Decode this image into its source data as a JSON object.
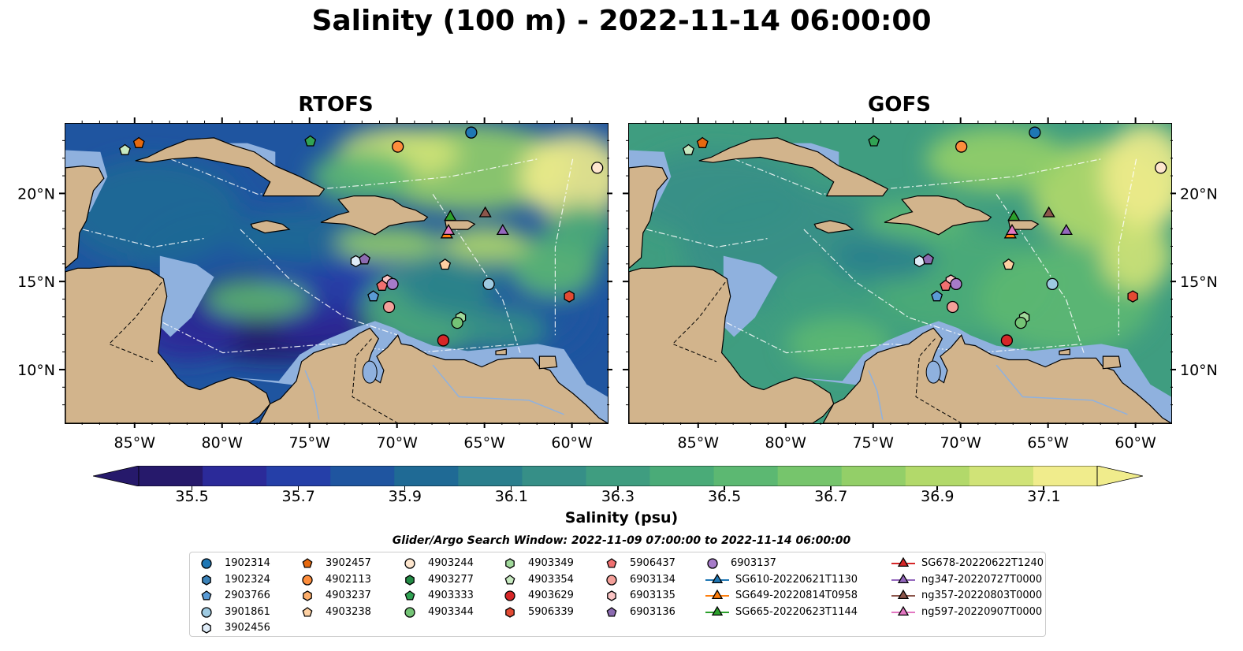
{
  "title": "Salinity (100 m) - 2022-11-14 06:00:00",
  "panels": [
    {
      "title": "RTOFS",
      "field": "rtofs"
    },
    {
      "title": "GOFS",
      "field": "gofs"
    }
  ],
  "axes": {
    "lon_ticks": [
      "85°W",
      "80°W",
      "75°W",
      "70°W",
      "65°W",
      "60°W"
    ],
    "lat_ticks": [
      "20°N",
      "15°N",
      "10°N"
    ],
    "lon_range": [
      -89,
      -58
    ],
    "lat_range": [
      7,
      24
    ]
  },
  "colorbar": {
    "label": "Salinity (psu)",
    "min": 35.4,
    "max": 37.2,
    "ticks": [
      "35.5",
      "35.7",
      "35.9",
      "36.1",
      "36.3",
      "36.5",
      "36.7",
      "36.9",
      "37.1"
    ],
    "extend": "both",
    "colors": [
      "#26196b",
      "#2b2a99",
      "#253fa8",
      "#1f55a0",
      "#1f6a95",
      "#2a7f8d",
      "#368f87",
      "#3f9d80",
      "#4aab78",
      "#5cb872",
      "#76c56c",
      "#93cf68",
      "#b2d96a",
      "#d0e377",
      "#f0ec8c"
    ]
  },
  "colors": {
    "land": "#d2b48c",
    "shallow": "#8fb1de",
    "deep": "#26196b"
  },
  "search_window": "Glider/Argo Search Window: 2022-11-09 07:00:00 to 2022-11-14 06:00:00",
  "legend": [
    {
      "label": "1902314",
      "marker": "circle",
      "color": "#1f77b4"
    },
    {
      "label": "1902324",
      "marker": "hexagon",
      "color": "#3b82b8"
    },
    {
      "label": "2903766",
      "marker": "pentagon",
      "color": "#5a9bd5"
    },
    {
      "label": "3901861",
      "marker": "circle",
      "color": "#9ecae1"
    },
    {
      "label": "3902456",
      "marker": "hexagon",
      "color": "#deebf7"
    },
    {
      "label": "3902457",
      "marker": "pentagon",
      "color": "#e6690f"
    },
    {
      "label": "4902113",
      "marker": "circle",
      "color": "#fd8d3c"
    },
    {
      "label": "4903237",
      "marker": "hexagon",
      "color": "#fdae6b"
    },
    {
      "label": "4903238",
      "marker": "pentagon",
      "color": "#fdd0a2"
    },
    {
      "label": "4903244",
      "marker": "circle",
      "color": "#fee6ce"
    },
    {
      "label": "4903277",
      "marker": "hexagon",
      "color": "#238b45"
    },
    {
      "label": "4903333",
      "marker": "pentagon",
      "color": "#31a354"
    },
    {
      "label": "4903344",
      "marker": "circle",
      "color": "#74c476"
    },
    {
      "label": "4903349",
      "marker": "hexagon",
      "color": "#a1d99b"
    },
    {
      "label": "4903354",
      "marker": "pentagon",
      "color": "#c7e9c0"
    },
    {
      "label": "4903629",
      "marker": "circle",
      "color": "#d62728"
    },
    {
      "label": "5906339",
      "marker": "hexagon",
      "color": "#e34a33"
    },
    {
      "label": "5906437",
      "marker": "pentagon",
      "color": "#f07070"
    },
    {
      "label": "6903134",
      "marker": "circle",
      "color": "#f4a09a"
    },
    {
      "label": "6903135",
      "marker": "hexagon",
      "color": "#fbc4c4"
    },
    {
      "label": "6903136",
      "marker": "pentagon",
      "color": "#8c6bb1"
    },
    {
      "label": "6903137",
      "marker": "circle",
      "color": "#a67bc9"
    },
    {
      "label": "SG610-20220621T1130",
      "marker": "triangle",
      "color": "#1f77b4"
    },
    {
      "label": "SG649-20220814T0958",
      "marker": "triangle",
      "color": "#ff7f0e"
    },
    {
      "label": "SG665-20220623T1144",
      "marker": "triangle",
      "color": "#2ca02c"
    },
    {
      "label": "SG678-20220622T1240",
      "marker": "triangle",
      "color": "#d62728"
    },
    {
      "label": "ng347-20220727T0000",
      "marker": "triangle",
      "color": "#9467bd"
    },
    {
      "label": "ng357-20220803T0000",
      "marker": "triangle",
      "color": "#8c564b"
    },
    {
      "label": "ng597-20220907T0000",
      "marker": "triangle",
      "color": "#e377c2"
    }
  ],
  "points": [
    {
      "id": "1902314",
      "lon": -65.8,
      "lat": 23.5
    },
    {
      "id": "4902113",
      "lon": -70.0,
      "lat": 22.7
    },
    {
      "id": "4903244",
      "lon": -58.6,
      "lat": 21.5
    },
    {
      "id": "4903354",
      "lon": -85.6,
      "lat": 22.5
    },
    {
      "id": "3902457",
      "lon": -84.8,
      "lat": 22.9
    },
    {
      "id": "4903333",
      "lon": -75.0,
      "lat": 23.0
    },
    {
      "id": "SG665-20220623T1144",
      "lon": -67.0,
      "lat": 18.7
    },
    {
      "id": "ng357-20220803T0000",
      "lon": -65.0,
      "lat": 18.9
    },
    {
      "id": "SG649-20220814T0958",
      "lon": -67.2,
      "lat": 17.7
    },
    {
      "id": "ng597-20220907T0000",
      "lon": -67.1,
      "lat": 17.9
    },
    {
      "id": "ng347-20220727T0000",
      "lon": -64.0,
      "lat": 17.9
    },
    {
      "id": "3902456",
      "lon": -72.4,
      "lat": 16.2
    },
    {
      "id": "6903136",
      "lon": -71.9,
      "lat": 16.3
    },
    {
      "id": "4903238",
      "lon": -67.3,
      "lat": 16.0
    },
    {
      "id": "6903135",
      "lon": -70.6,
      "lat": 15.1
    },
    {
      "id": "5906437",
      "lon": -70.9,
      "lat": 14.8
    },
    {
      "id": "6903137",
      "lon": -70.3,
      "lat": 14.9
    },
    {
      "id": "2903766",
      "lon": -71.4,
      "lat": 14.2
    },
    {
      "id": "3901861",
      "lon": -64.8,
      "lat": 14.9
    },
    {
      "id": "5906339",
      "lon": -60.2,
      "lat": 14.2
    },
    {
      "id": "6903134",
      "lon": -70.5,
      "lat": 13.6
    },
    {
      "id": "4903349",
      "lon": -66.4,
      "lat": 13.0
    },
    {
      "id": "4903344",
      "lon": -66.6,
      "lat": 12.7
    },
    {
      "id": "4903629",
      "lon": -67.4,
      "lat": 11.7
    }
  ]
}
